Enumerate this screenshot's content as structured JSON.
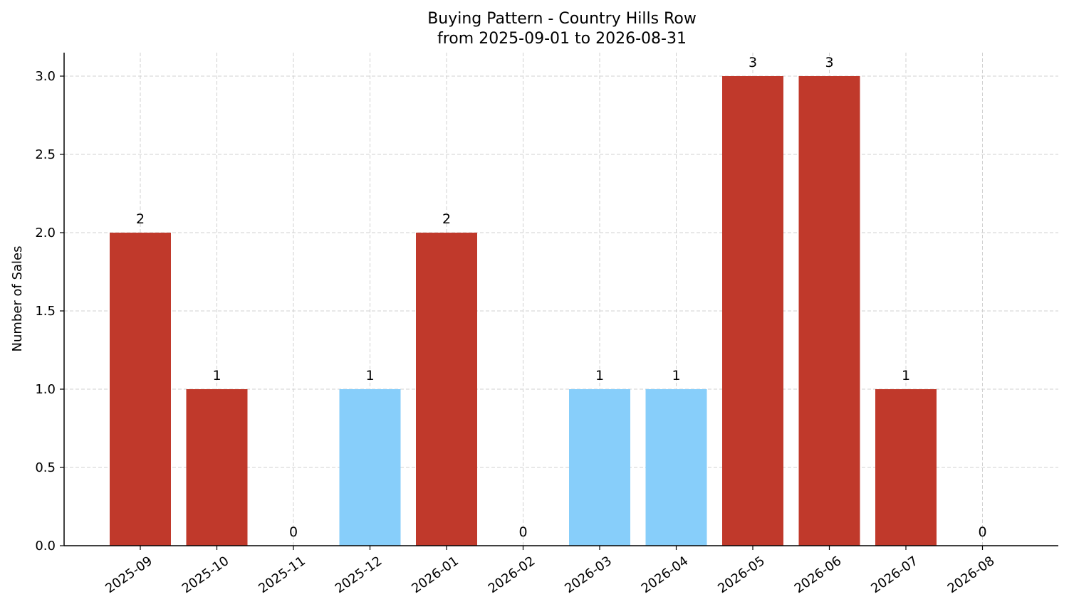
{
  "chart_data": {
    "type": "bar",
    "title": "Buying Pattern - Country Hills Row",
    "subtitle": "from 2025-09-01 to 2026-08-31",
    "xlabel": "",
    "ylabel": "Number of Sales",
    "categories": [
      "2025-09",
      "2025-10",
      "2025-11",
      "2025-12",
      "2026-01",
      "2026-02",
      "2026-03",
      "2026-04",
      "2026-05",
      "2026-06",
      "2026-07",
      "2026-08"
    ],
    "values": [
      2,
      1,
      0,
      1,
      2,
      0,
      1,
      1,
      3,
      3,
      1,
      0
    ],
    "bar_colors": [
      "#c0392b",
      "#c0392b",
      "#c0392b",
      "#87cefa",
      "#c0392b",
      "#c0392b",
      "#87cefa",
      "#87cefa",
      "#c0392b",
      "#c0392b",
      "#c0392b",
      "#c0392b"
    ],
    "data_labels": [
      "2",
      "1",
      "0",
      "1",
      "2",
      "0",
      "1",
      "1",
      "3",
      "3",
      "1",
      "0"
    ],
    "ylim": [
      0,
      3.15
    ],
    "yticks": [
      "0.0",
      "0.5",
      "1.0",
      "1.5",
      "2.0",
      "2.5",
      "3.0"
    ],
    "grid": true,
    "legend": "none"
  }
}
